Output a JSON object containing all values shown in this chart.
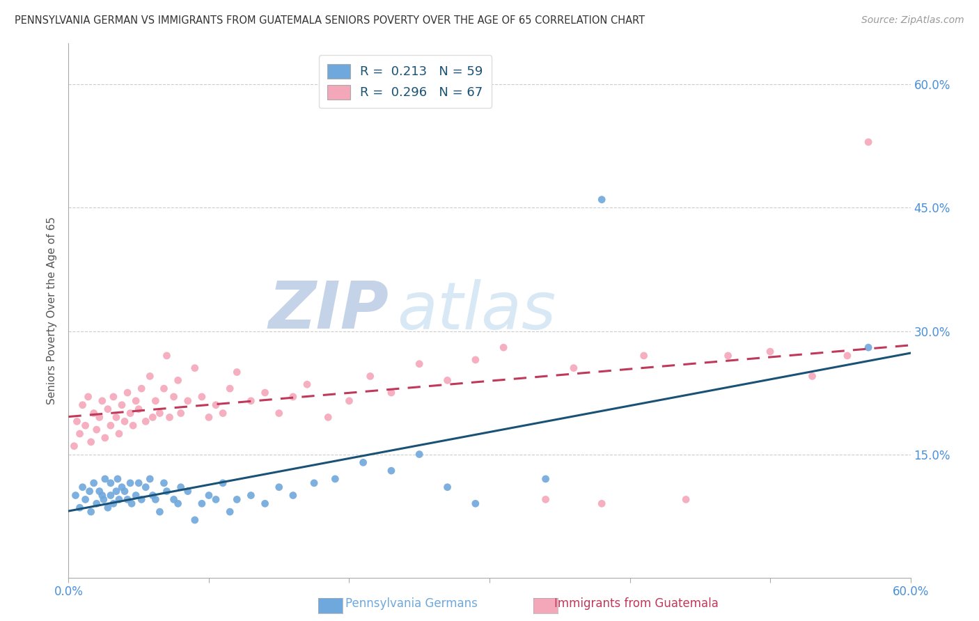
{
  "title": "PENNSYLVANIA GERMAN VS IMMIGRANTS FROM GUATEMALA SENIORS POVERTY OVER THE AGE OF 65 CORRELATION CHART",
  "source": "Source: ZipAtlas.com",
  "ylabel": "Seniors Poverty Over the Age of 65",
  "xlim": [
    0.0,
    0.6
  ],
  "ylim": [
    0.0,
    0.65
  ],
  "ytick_vals": [
    0.15,
    0.3,
    0.45,
    0.6
  ],
  "ytick_labels": [
    "15.0%",
    "30.0%",
    "45.0%",
    "60.0%"
  ],
  "color_blue": "#6fa8dc",
  "color_pink": "#f4a7b9",
  "color_blue_line": "#1a5276",
  "color_pink_line": "#c0395a",
  "color_axis": "#4a90d9",
  "color_watermark_zip": "#cdd8e8",
  "color_watermark_atlas": "#d8e4f0",
  "blue_R": "0.213",
  "blue_N": "59",
  "pink_R": "0.296",
  "pink_N": "67",
  "blue_scatter_x": [
    0.005,
    0.008,
    0.01,
    0.012,
    0.015,
    0.016,
    0.018,
    0.02,
    0.022,
    0.024,
    0.025,
    0.026,
    0.028,
    0.03,
    0.03,
    0.032,
    0.034,
    0.035,
    0.036,
    0.038,
    0.04,
    0.042,
    0.044,
    0.045,
    0.048,
    0.05,
    0.052,
    0.055,
    0.058,
    0.06,
    0.062,
    0.065,
    0.068,
    0.07,
    0.075,
    0.078,
    0.08,
    0.085,
    0.09,
    0.095,
    0.1,
    0.105,
    0.11,
    0.115,
    0.12,
    0.13,
    0.14,
    0.15,
    0.16,
    0.175,
    0.19,
    0.21,
    0.23,
    0.25,
    0.27,
    0.29,
    0.34,
    0.38,
    0.57
  ],
  "blue_scatter_y": [
    0.1,
    0.085,
    0.11,
    0.095,
    0.105,
    0.08,
    0.115,
    0.09,
    0.105,
    0.1,
    0.095,
    0.12,
    0.085,
    0.1,
    0.115,
    0.09,
    0.105,
    0.12,
    0.095,
    0.11,
    0.105,
    0.095,
    0.115,
    0.09,
    0.1,
    0.115,
    0.095,
    0.11,
    0.12,
    0.1,
    0.095,
    0.08,
    0.115,
    0.105,
    0.095,
    0.09,
    0.11,
    0.105,
    0.07,
    0.09,
    0.1,
    0.095,
    0.115,
    0.08,
    0.095,
    0.1,
    0.09,
    0.11,
    0.1,
    0.115,
    0.12,
    0.14,
    0.13,
    0.15,
    0.11,
    0.09,
    0.12,
    0.46,
    0.28
  ],
  "pink_scatter_x": [
    0.004,
    0.006,
    0.008,
    0.01,
    0.012,
    0.014,
    0.016,
    0.018,
    0.02,
    0.022,
    0.024,
    0.026,
    0.028,
    0.03,
    0.032,
    0.034,
    0.036,
    0.038,
    0.04,
    0.042,
    0.044,
    0.046,
    0.048,
    0.05,
    0.052,
    0.055,
    0.058,
    0.06,
    0.062,
    0.065,
    0.068,
    0.07,
    0.072,
    0.075,
    0.078,
    0.08,
    0.085,
    0.09,
    0.095,
    0.1,
    0.105,
    0.11,
    0.115,
    0.12,
    0.13,
    0.14,
    0.15,
    0.16,
    0.17,
    0.185,
    0.2,
    0.215,
    0.23,
    0.25,
    0.27,
    0.29,
    0.31,
    0.34,
    0.36,
    0.38,
    0.41,
    0.44,
    0.47,
    0.5,
    0.53,
    0.555,
    0.57
  ],
  "pink_scatter_y": [
    0.16,
    0.19,
    0.175,
    0.21,
    0.185,
    0.22,
    0.165,
    0.2,
    0.18,
    0.195,
    0.215,
    0.17,
    0.205,
    0.185,
    0.22,
    0.195,
    0.175,
    0.21,
    0.19,
    0.225,
    0.2,
    0.185,
    0.215,
    0.205,
    0.23,
    0.19,
    0.245,
    0.195,
    0.215,
    0.2,
    0.23,
    0.27,
    0.195,
    0.22,
    0.24,
    0.2,
    0.215,
    0.255,
    0.22,
    0.195,
    0.21,
    0.2,
    0.23,
    0.25,
    0.215,
    0.225,
    0.2,
    0.22,
    0.235,
    0.195,
    0.215,
    0.245,
    0.225,
    0.26,
    0.24,
    0.265,
    0.28,
    0.095,
    0.255,
    0.09,
    0.27,
    0.095,
    0.27,
    0.275,
    0.245,
    0.27,
    0.53
  ]
}
